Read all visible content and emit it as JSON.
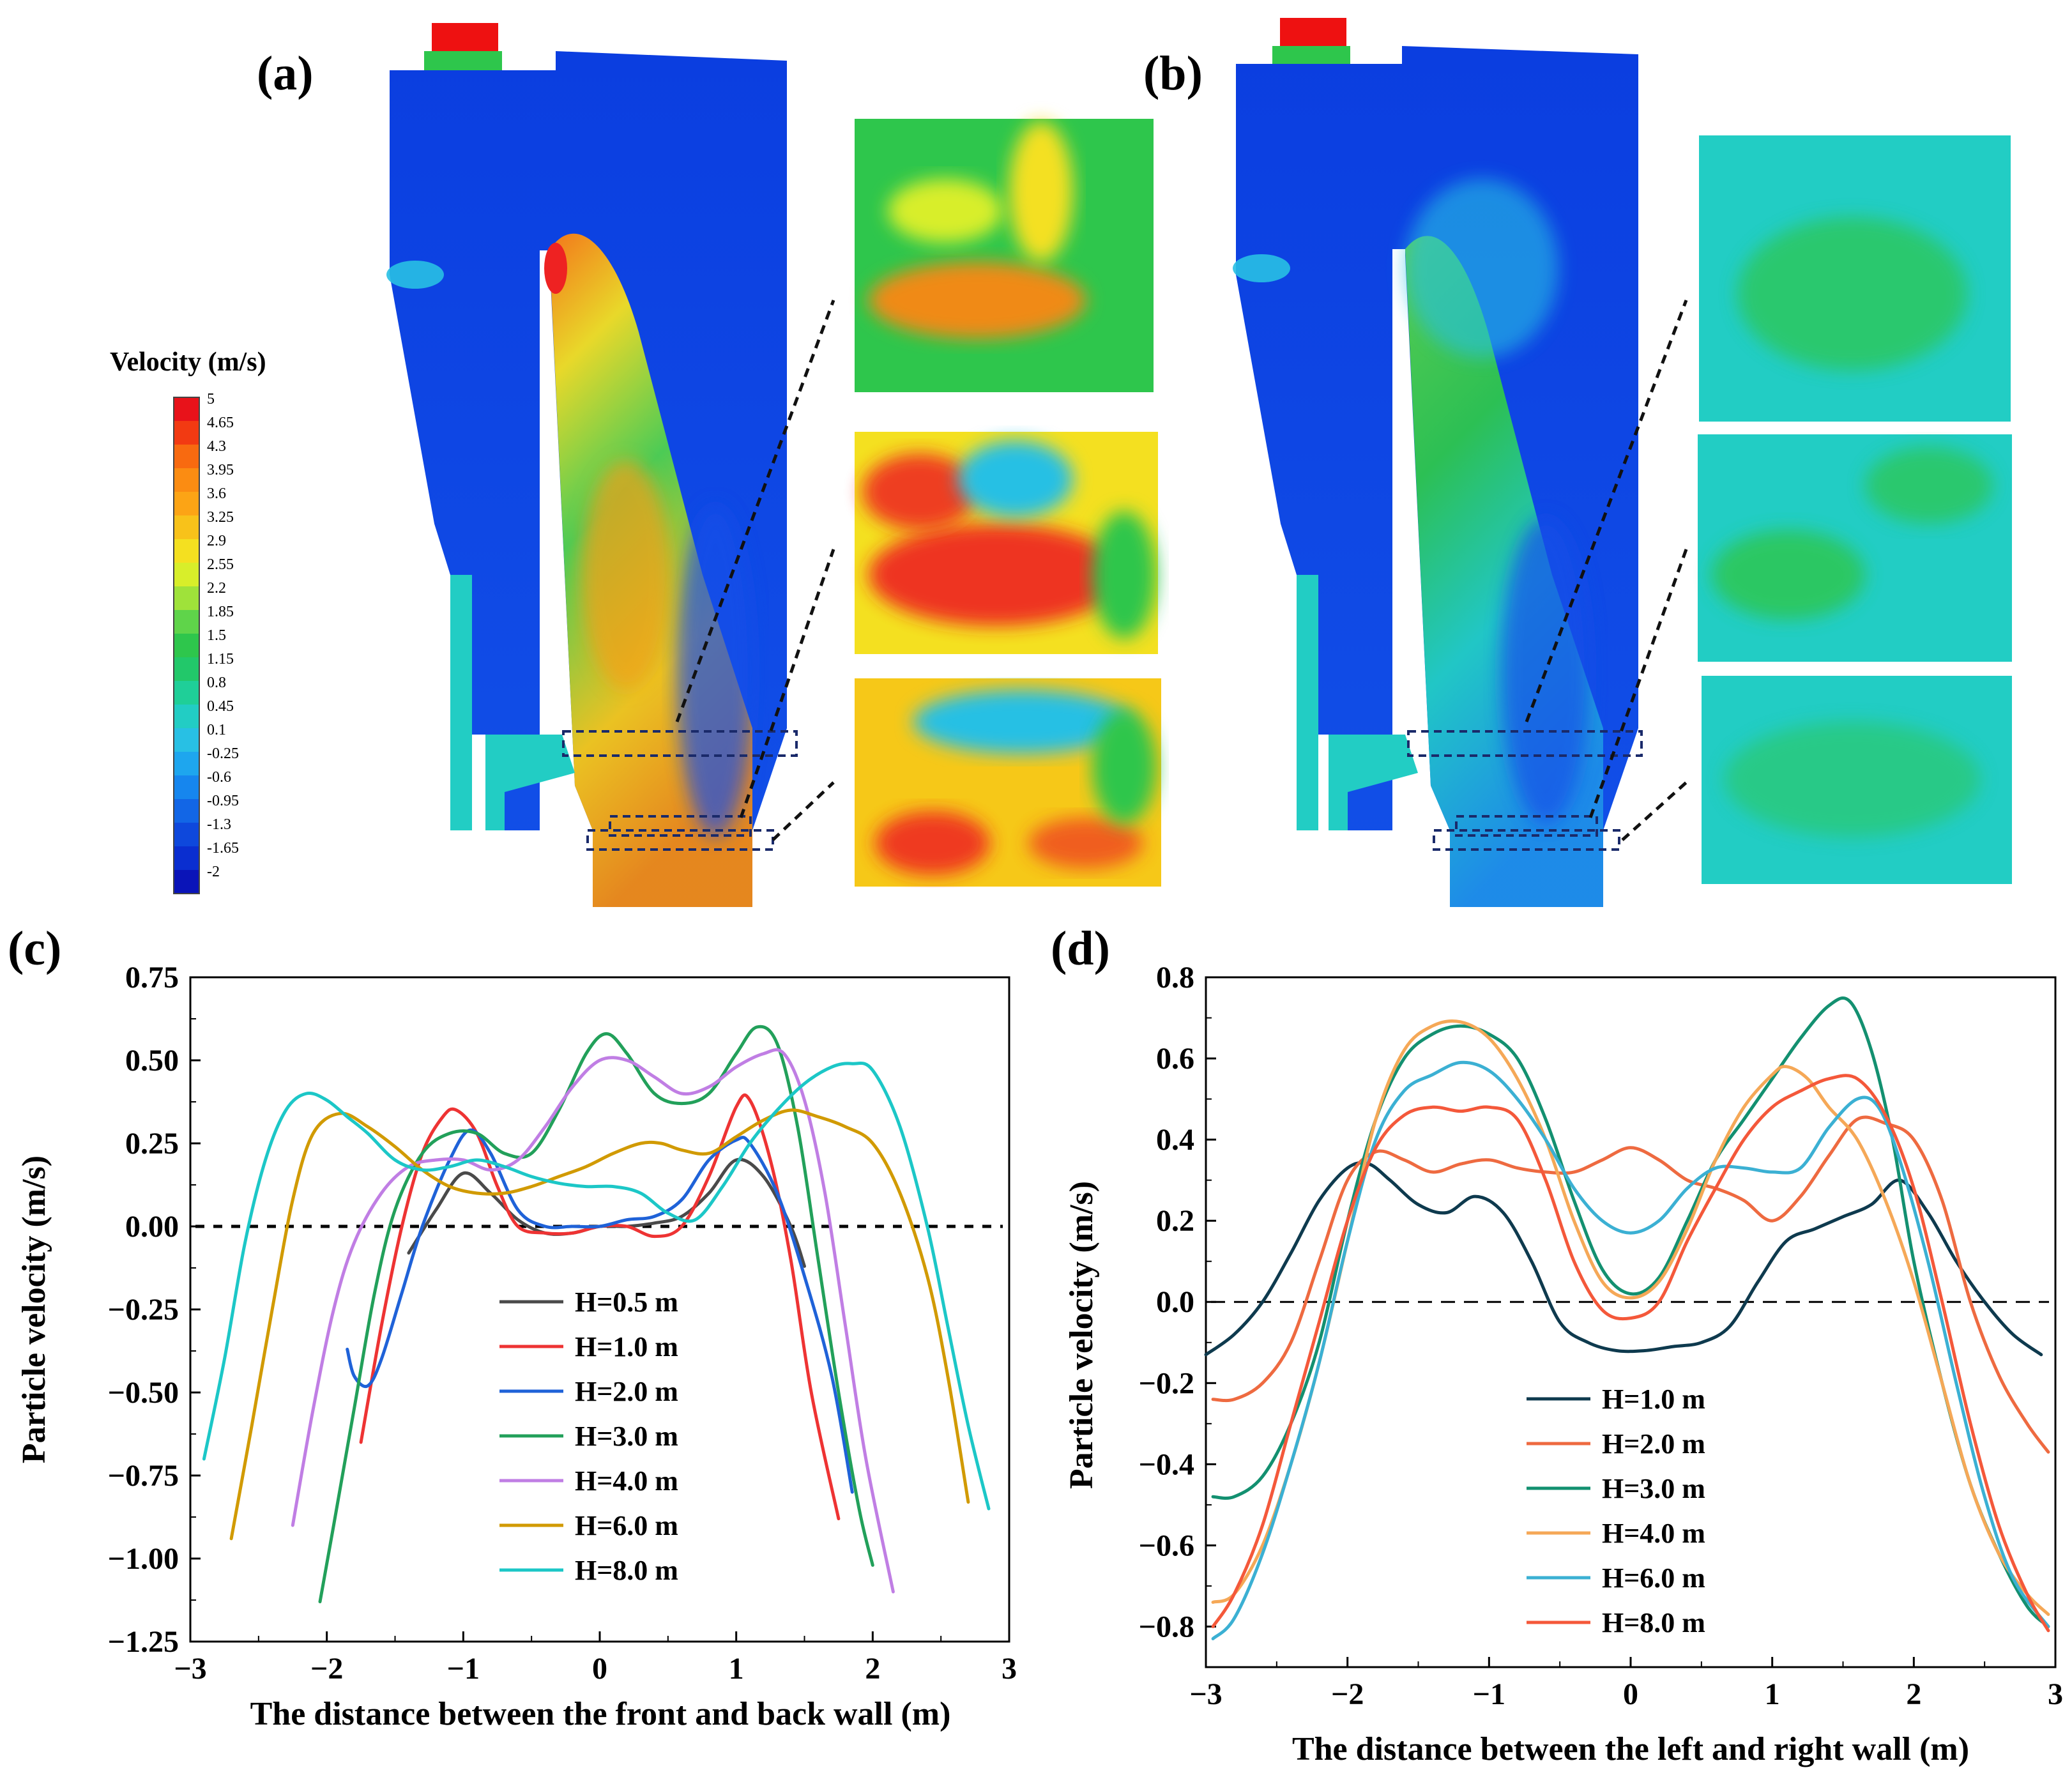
{
  "figure": {
    "panel_letters": [
      "(a)",
      "(b)",
      "(c)",
      "(d)"
    ],
    "colorbar": {
      "title": "Velocity (m/s)",
      "levels": [
        "5",
        "4.65",
        "4.3",
        "3.95",
        "3.6",
        "3.25",
        "2.9",
        "2.55",
        "2.2",
        "1.85",
        "1.5",
        "1.15",
        "0.8",
        "0.45",
        "0.1",
        "-0.25",
        "-0.6",
        "-0.95",
        "-1.3",
        "-1.65",
        "-2"
      ],
      "colors": [
        "#e8121a",
        "#f23a12",
        "#f86a10",
        "#fb8c12",
        "#fca415",
        "#f8c21a",
        "#f4e020",
        "#d8ee2a",
        "#9fe23a",
        "#5fd44a",
        "#2ec64c",
        "#22c86a",
        "#1fcf98",
        "#22cdc4",
        "#28c0e4",
        "#1ea6ee",
        "#1686ee",
        "#1266e6",
        "#0e48dc",
        "#0a2ed0",
        "#0a14b8"
      ]
    }
  },
  "chart_data": [
    {
      "panel": "(c)",
      "type": "line",
      "xlabel": "The distance between the front  and back wall (m)",
      "ylabel": "Particle velocity (m/s)",
      "xlim": [
        -3,
        3
      ],
      "ylim": [
        -1.25,
        0.75
      ],
      "xticks": [
        "−3",
        "−2",
        "−1",
        "0",
        "1",
        "2",
        "3"
      ],
      "yticks": [
        "0.75",
        "0.50",
        "0.25",
        "0.00",
        "−0.25",
        "−0.50",
        "−0.75",
        "−1.00",
        "−1.25"
      ],
      "xtick_values": [
        -3,
        -2,
        -1,
        0,
        1,
        2,
        3
      ],
      "ytick_values": [
        0.75,
        0.5,
        0.25,
        0,
        -0.25,
        -0.5,
        -0.75,
        -1.0,
        -1.25
      ],
      "reference_line": 0,
      "series": [
        {
          "name": "H=0.5 m",
          "color": "#4a4a4a",
          "x": [
            -1.4,
            -1.2,
            -1.0,
            -0.8,
            -0.6,
            -0.4,
            -0.2,
            0,
            0.2,
            0.4,
            0.6,
            0.8,
            1.0,
            1.2,
            1.4,
            1.5
          ],
          "y": [
            -0.08,
            0.05,
            0.16,
            0.1,
            0.02,
            -0.02,
            -0.02,
            0.0,
            0.0,
            0.01,
            0.03,
            0.1,
            0.2,
            0.15,
            0.0,
            -0.12
          ]
        },
        {
          "name": "H=1.0 m",
          "color": "#ee3333",
          "x": [
            -1.75,
            -1.6,
            -1.45,
            -1.3,
            -1.15,
            -1.05,
            -0.9,
            -0.75,
            -0.6,
            -0.4,
            -0.2,
            0,
            0.2,
            0.4,
            0.6,
            0.8,
            1.0,
            1.1,
            1.25,
            1.4,
            1.55,
            1.75
          ],
          "y": [
            -0.65,
            -0.3,
            0.0,
            0.22,
            0.33,
            0.35,
            0.28,
            0.12,
            0.0,
            -0.02,
            -0.02,
            0.0,
            0.0,
            -0.03,
            0.0,
            0.15,
            0.36,
            0.38,
            0.2,
            -0.1,
            -0.5,
            -0.88
          ]
        },
        {
          "name": "H=2.0 m",
          "color": "#1f62d8",
          "x": [
            -1.85,
            -1.8,
            -1.7,
            -1.6,
            -1.45,
            -1.3,
            -1.1,
            -0.95,
            -0.8,
            -0.6,
            -0.4,
            -0.2,
            0,
            0.2,
            0.4,
            0.6,
            0.8,
            1.0,
            1.1,
            1.3,
            1.5,
            1.7,
            1.85
          ],
          "y": [
            -0.37,
            -0.45,
            -0.48,
            -0.4,
            -0.2,
            0.0,
            0.2,
            0.29,
            0.22,
            0.05,
            0.0,
            0.0,
            0.0,
            0.02,
            0.03,
            0.08,
            0.2,
            0.26,
            0.25,
            0.1,
            -0.15,
            -0.45,
            -0.8
          ]
        },
        {
          "name": "H=3.0 m",
          "color": "#22a05a",
          "x": [
            -2.05,
            -1.95,
            -1.8,
            -1.65,
            -1.5,
            -1.3,
            -1.1,
            -0.9,
            -0.7,
            -0.5,
            -0.3,
            -0.1,
            0.05,
            0.2,
            0.4,
            0.6,
            0.8,
            1.0,
            1.15,
            1.3,
            1.45,
            1.6,
            1.75,
            1.9,
            2.0
          ],
          "y": [
            -1.13,
            -0.9,
            -0.55,
            -0.2,
            0.05,
            0.22,
            0.28,
            0.28,
            0.22,
            0.22,
            0.35,
            0.52,
            0.58,
            0.52,
            0.4,
            0.37,
            0.4,
            0.52,
            0.6,
            0.55,
            0.3,
            -0.1,
            -0.5,
            -0.85,
            -1.02
          ]
        },
        {
          "name": "H=4.0 m",
          "color": "#c07ee4",
          "x": [
            -2.25,
            -2.1,
            -1.95,
            -1.8,
            -1.6,
            -1.4,
            -1.2,
            -1.0,
            -0.8,
            -0.6,
            -0.4,
            -0.2,
            0,
            0.2,
            0.4,
            0.6,
            0.8,
            1.0,
            1.2,
            1.35,
            1.5,
            1.65,
            1.8,
            1.95,
            2.15
          ],
          "y": [
            -0.9,
            -0.55,
            -0.25,
            -0.05,
            0.1,
            0.18,
            0.2,
            0.2,
            0.17,
            0.2,
            0.3,
            0.42,
            0.5,
            0.5,
            0.45,
            0.4,
            0.42,
            0.48,
            0.52,
            0.52,
            0.38,
            0.1,
            -0.3,
            -0.7,
            -1.1
          ]
        },
        {
          "name": "H=6.0 m",
          "color": "#d19a00",
          "x": [
            -2.7,
            -2.55,
            -2.4,
            -2.25,
            -2.1,
            -1.9,
            -1.7,
            -1.5,
            -1.3,
            -1.1,
            -0.9,
            -0.7,
            -0.5,
            -0.3,
            -0.1,
            0.1,
            0.3,
            0.45,
            0.6,
            0.8,
            1.0,
            1.2,
            1.4,
            1.6,
            1.8,
            2.0,
            2.2,
            2.4,
            2.55,
            2.7
          ],
          "y": [
            -0.94,
            -0.6,
            -0.25,
            0.08,
            0.28,
            0.34,
            0.3,
            0.24,
            0.17,
            0.12,
            0.1,
            0.1,
            0.12,
            0.15,
            0.18,
            0.22,
            0.25,
            0.25,
            0.23,
            0.22,
            0.27,
            0.32,
            0.35,
            0.33,
            0.3,
            0.25,
            0.1,
            -0.15,
            -0.45,
            -0.83
          ]
        },
        {
          "name": "H=8.0 m",
          "color": "#1cc7c7",
          "x": [
            -2.9,
            -2.75,
            -2.6,
            -2.45,
            -2.3,
            -2.15,
            -2.0,
            -1.85,
            -1.7,
            -1.5,
            -1.3,
            -1.1,
            -0.9,
            -0.7,
            -0.5,
            -0.3,
            -0.1,
            0.1,
            0.3,
            0.5,
            0.7,
            0.9,
            1.1,
            1.3,
            1.5,
            1.7,
            1.85,
            2.0,
            2.2,
            2.4,
            2.55,
            2.7,
            2.85
          ],
          "y": [
            -0.7,
            -0.4,
            -0.05,
            0.2,
            0.35,
            0.4,
            0.38,
            0.33,
            0.28,
            0.2,
            0.17,
            0.18,
            0.2,
            0.18,
            0.15,
            0.13,
            0.12,
            0.12,
            0.1,
            0.04,
            0.02,
            0.12,
            0.25,
            0.35,
            0.43,
            0.48,
            0.49,
            0.47,
            0.3,
            0.0,
            -0.3,
            -0.6,
            -0.85
          ]
        }
      ]
    },
    {
      "panel": "(d)",
      "type": "line",
      "xlabel": "The distance between the left  and right wall (m)",
      "ylabel": "Particle velocity (m/s)",
      "xlim": [
        -3,
        3
      ],
      "ylim": [
        -0.9,
        0.8
      ],
      "xticks": [
        "−3",
        "−2",
        "−1",
        "0",
        "1",
        "2",
        "3"
      ],
      "yticks": [
        "0.8",
        "0.6",
        "0.4",
        "0.2",
        "0.0",
        "−0.2",
        "−0.4",
        "−0.6",
        "−0.8"
      ],
      "xtick_values": [
        -3,
        -2,
        -1,
        0,
        1,
        2,
        3
      ],
      "ytick_values": [
        0.8,
        0.6,
        0.4,
        0.2,
        0,
        -0.2,
        -0.4,
        -0.6,
        -0.8
      ],
      "reference_line": 0,
      "series": [
        {
          "name": "H=1.0 m",
          "color": "#0e3a4e",
          "x": [
            -3,
            -2.8,
            -2.6,
            -2.4,
            -2.2,
            -2.0,
            -1.85,
            -1.7,
            -1.5,
            -1.3,
            -1.1,
            -0.9,
            -0.7,
            -0.5,
            -0.3,
            -0.1,
            0.1,
            0.3,
            0.5,
            0.7,
            0.9,
            1.1,
            1.3,
            1.5,
            1.7,
            1.9,
            2.1,
            2.3,
            2.5,
            2.7,
            2.9
          ],
          "y": [
            -0.13,
            -0.08,
            0.0,
            0.12,
            0.25,
            0.33,
            0.34,
            0.3,
            0.24,
            0.22,
            0.26,
            0.22,
            0.1,
            -0.05,
            -0.1,
            -0.12,
            -0.12,
            -0.11,
            -0.1,
            -0.06,
            0.05,
            0.15,
            0.18,
            0.21,
            0.24,
            0.3,
            0.22,
            0.1,
            0.0,
            -0.08,
            -0.13
          ]
        },
        {
          "name": "H=2.0 m",
          "color": "#ee6a40",
          "x": [
            -2.95,
            -2.8,
            -2.6,
            -2.4,
            -2.2,
            -2.0,
            -1.8,
            -1.6,
            -1.4,
            -1.2,
            -1.0,
            -0.8,
            -0.6,
            -0.4,
            -0.2,
            0,
            0.2,
            0.4,
            0.6,
            0.8,
            1.0,
            1.2,
            1.4,
            1.6,
            1.8,
            2.0,
            2.2,
            2.4,
            2.6,
            2.8,
            2.95
          ],
          "y": [
            -0.24,
            -0.24,
            -0.2,
            -0.1,
            0.1,
            0.3,
            0.37,
            0.35,
            0.32,
            0.34,
            0.35,
            0.33,
            0.32,
            0.32,
            0.35,
            0.38,
            0.35,
            0.3,
            0.28,
            0.25,
            0.2,
            0.26,
            0.36,
            0.45,
            0.44,
            0.4,
            0.25,
            0.0,
            -0.18,
            -0.3,
            -0.37
          ]
        },
        {
          "name": "H=3.0 m",
          "color": "#139070",
          "x": [
            -2.95,
            -2.8,
            -2.6,
            -2.4,
            -2.2,
            -2.0,
            -1.8,
            -1.6,
            -1.4,
            -1.2,
            -1.0,
            -0.8,
            -0.6,
            -0.4,
            -0.2,
            0,
            0.2,
            0.4,
            0.6,
            0.8,
            1.0,
            1.2,
            1.4,
            1.55,
            1.7,
            1.85,
            2.0,
            2.2,
            2.4,
            2.6,
            2.8,
            2.95
          ],
          "y": [
            -0.48,
            -0.48,
            -0.43,
            -0.3,
            -0.1,
            0.2,
            0.45,
            0.6,
            0.66,
            0.68,
            0.66,
            0.6,
            0.45,
            0.25,
            0.08,
            0.02,
            0.06,
            0.2,
            0.35,
            0.45,
            0.55,
            0.65,
            0.73,
            0.74,
            0.62,
            0.4,
            0.1,
            -0.2,
            -0.45,
            -0.62,
            -0.75,
            -0.8
          ]
        },
        {
          "name": "H=4.0 m",
          "color": "#f5a857",
          "x": [
            -2.95,
            -2.8,
            -2.6,
            -2.4,
            -2.2,
            -2.0,
            -1.8,
            -1.6,
            -1.4,
            -1.2,
            -1.0,
            -0.8,
            -0.6,
            -0.4,
            -0.2,
            0,
            0.2,
            0.4,
            0.6,
            0.8,
            1.0,
            1.1,
            1.25,
            1.4,
            1.6,
            1.8,
            2.0,
            2.2,
            2.4,
            2.6,
            2.8,
            2.95
          ],
          "y": [
            -0.74,
            -0.72,
            -0.6,
            -0.4,
            -0.15,
            0.15,
            0.45,
            0.62,
            0.68,
            0.69,
            0.65,
            0.55,
            0.4,
            0.2,
            0.05,
            0.01,
            0.05,
            0.18,
            0.35,
            0.48,
            0.56,
            0.58,
            0.55,
            0.48,
            0.4,
            0.25,
            0.05,
            -0.2,
            -0.45,
            -0.62,
            -0.72,
            -0.77
          ]
        },
        {
          "name": "H=6.0 m",
          "color": "#3bb0d3",
          "x": [
            -2.95,
            -2.8,
            -2.6,
            -2.4,
            -2.2,
            -2.0,
            -1.8,
            -1.6,
            -1.4,
            -1.2,
            -1.0,
            -0.8,
            -0.6,
            -0.4,
            -0.2,
            0,
            0.2,
            0.4,
            0.6,
            0.8,
            1.0,
            1.2,
            1.4,
            1.6,
            1.75,
            1.9,
            2.1,
            2.3,
            2.5,
            2.7,
            2.95
          ],
          "y": [
            -0.83,
            -0.78,
            -0.62,
            -0.4,
            -0.15,
            0.15,
            0.4,
            0.52,
            0.56,
            0.59,
            0.57,
            0.5,
            0.4,
            0.28,
            0.2,
            0.17,
            0.2,
            0.28,
            0.33,
            0.33,
            0.32,
            0.33,
            0.43,
            0.5,
            0.48,
            0.35,
            0.1,
            -0.2,
            -0.48,
            -0.68,
            -0.8
          ]
        },
        {
          "name": "H=8.0 m",
          "color": "#f4583a",
          "x": [
            -2.95,
            -2.8,
            -2.6,
            -2.4,
            -2.2,
            -2.0,
            -1.8,
            -1.6,
            -1.4,
            -1.2,
            -1.0,
            -0.8,
            -0.6,
            -0.4,
            -0.2,
            0,
            0.2,
            0.4,
            0.6,
            0.8,
            1.0,
            1.2,
            1.4,
            1.6,
            1.8,
            2.0,
            2.2,
            2.4,
            2.6,
            2.8,
            2.95
          ],
          "y": [
            -0.8,
            -0.72,
            -0.55,
            -0.3,
            -0.05,
            0.2,
            0.38,
            0.46,
            0.48,
            0.47,
            0.48,
            0.45,
            0.3,
            0.1,
            -0.02,
            -0.04,
            0.0,
            0.15,
            0.28,
            0.4,
            0.48,
            0.52,
            0.55,
            0.55,
            0.46,
            0.28,
            0.0,
            -0.3,
            -0.55,
            -0.72,
            -0.81
          ]
        }
      ]
    }
  ]
}
